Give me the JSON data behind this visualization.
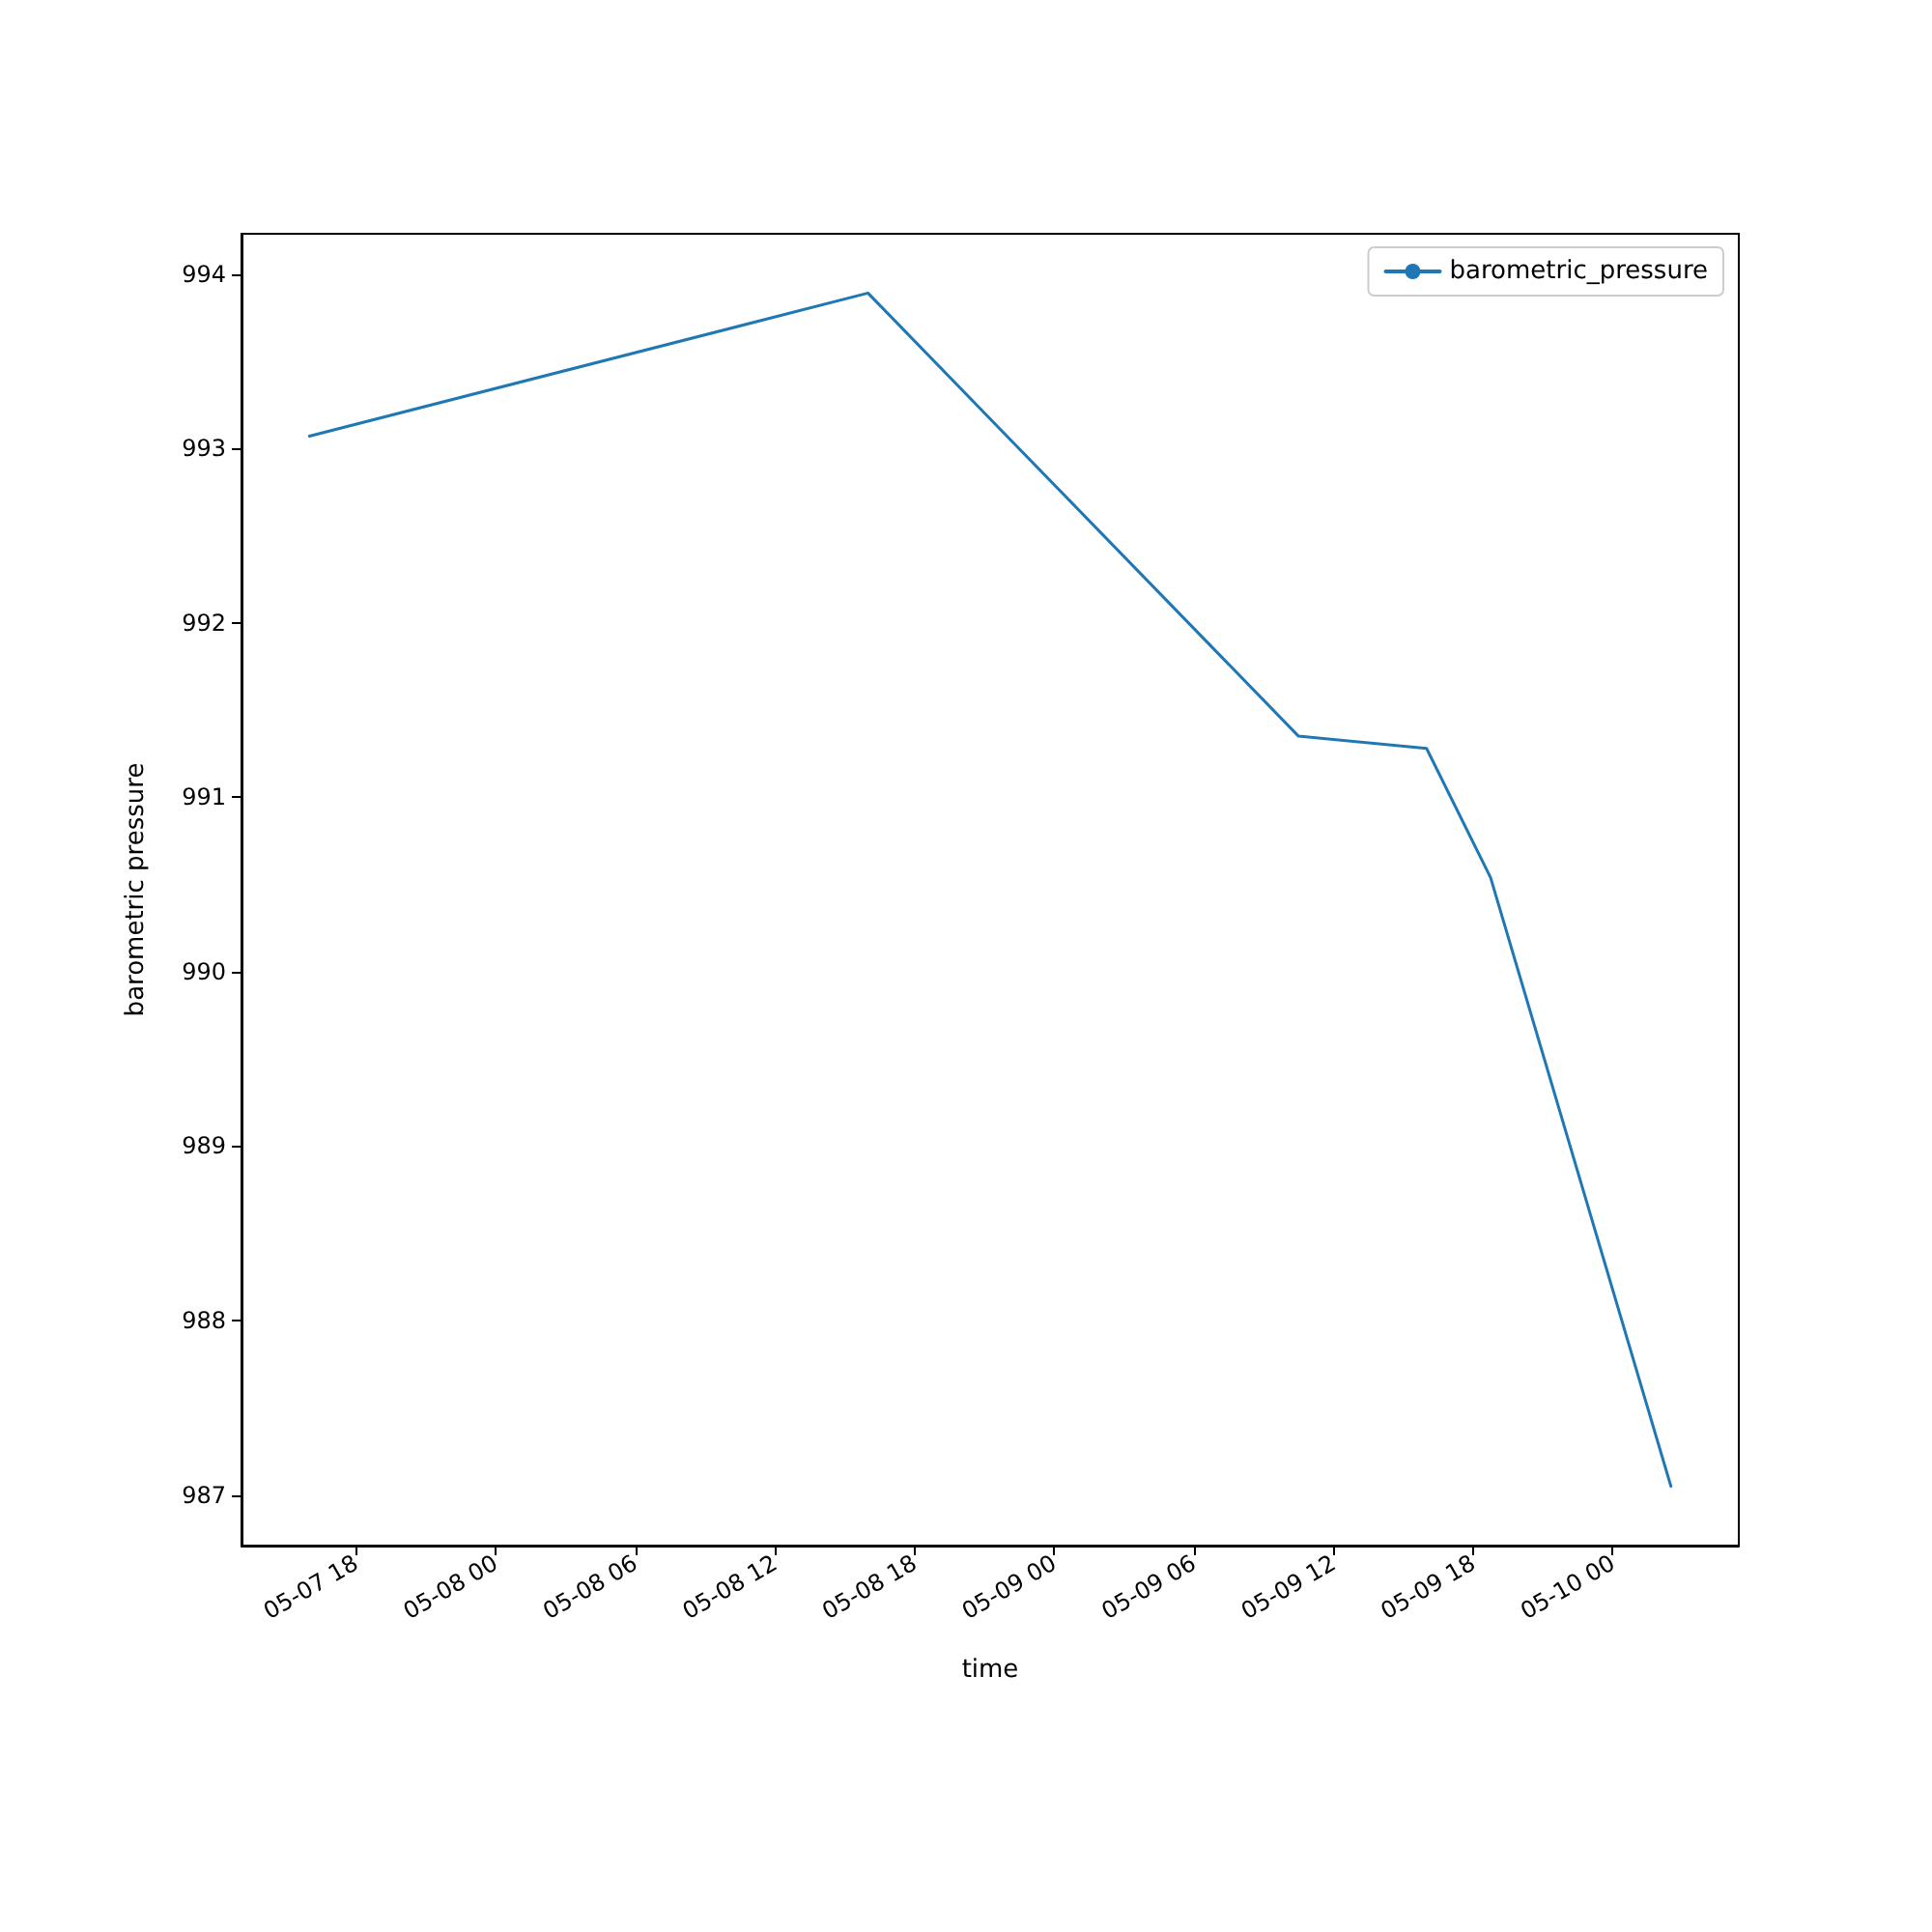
{
  "chart_data": {
    "type": "line",
    "xlabel": "time",
    "ylabel": "barometric pressure",
    "x": [
      "--05-07T16:00",
      "--05-08T16:00",
      "--05-09T10:30",
      "--05-09T16:00",
      "--05-09T18:45",
      "--05-10T02:30"
    ],
    "series": [
      {
        "name": "barometric_pressure",
        "color": "#1f77b4",
        "values": [
          993.07,
          993.89,
          991.35,
          991.28,
          990.54,
          987.05
        ]
      }
    ],
    "xlim": [
      "--05-07T13:05",
      "--05-10T05:25"
    ],
    "xticks": [
      {
        "value": "--05-07T18:00",
        "label": "05-07 18"
      },
      {
        "value": "--05-08T00:00",
        "label": "05-08 00"
      },
      {
        "value": "--05-08T06:00",
        "label": "05-08 06"
      },
      {
        "value": "--05-08T12:00",
        "label": "05-08 12"
      },
      {
        "value": "--05-08T18:00",
        "label": "05-08 18"
      },
      {
        "value": "--05-09T00:00",
        "label": "05-09 00"
      },
      {
        "value": "--05-09T06:00",
        "label": "05-09 06"
      },
      {
        "value": "--05-09T12:00",
        "label": "05-09 12"
      },
      {
        "value": "--05-09T18:00",
        "label": "05-09 18"
      },
      {
        "value": "--05-10T00:00",
        "label": "05-10 00"
      }
    ],
    "ylim": [
      986.71,
      994.23
    ],
    "yticks": [
      987,
      988,
      989,
      990,
      991,
      992,
      993,
      994
    ],
    "grid": false,
    "legend": "top right",
    "marker": "none"
  }
}
